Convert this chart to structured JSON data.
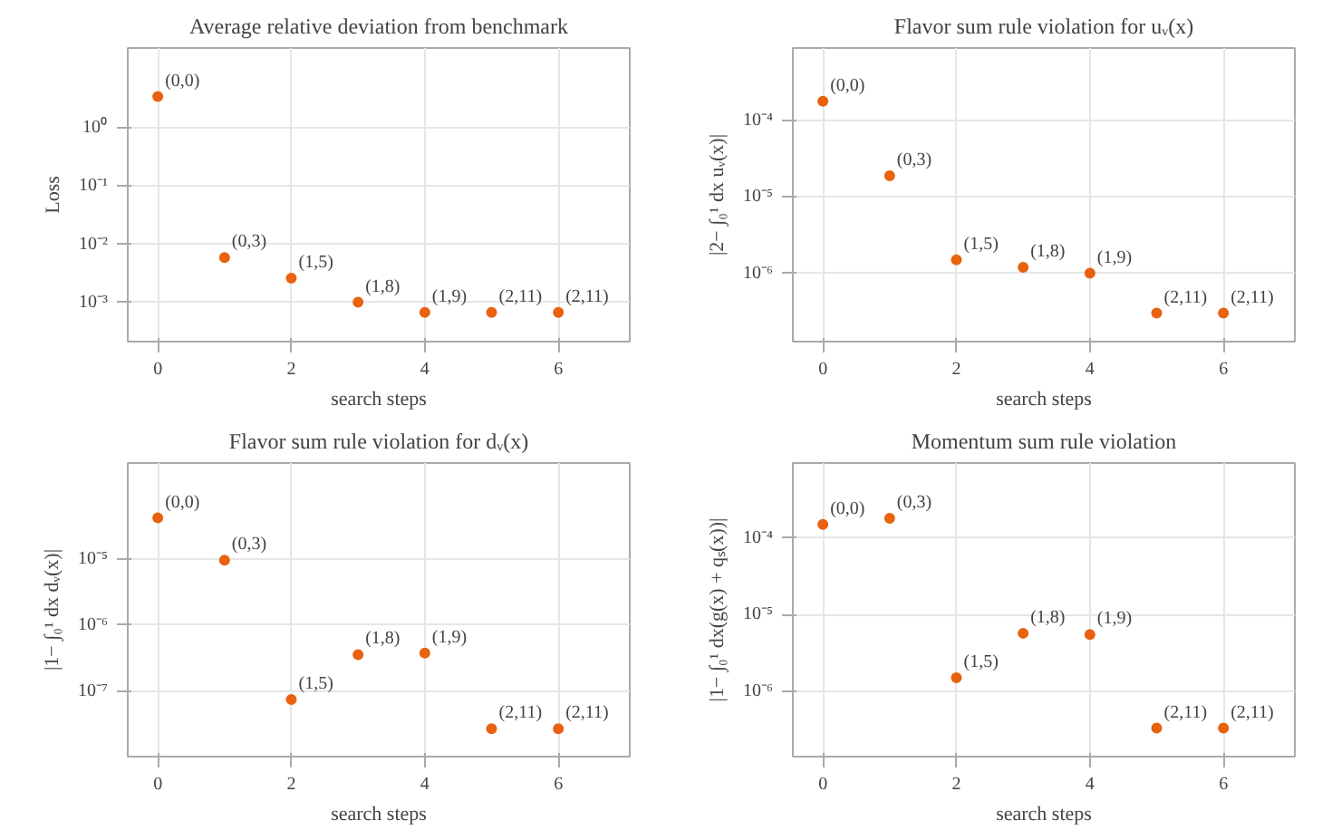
{
  "chart_data": [
    {
      "type": "scatter",
      "title": "Average relative deviation from benchmark",
      "xlabel": "search steps",
      "ylabel": "Loss",
      "log": "y",
      "grid": true,
      "marker": "circle",
      "x": [
        0,
        1,
        2,
        3,
        4,
        5,
        6
      ],
      "series": [
        {
          "color": "#e8620f",
          "values": [
            3.5,
            0.0059,
            0.0026,
            0.001,
            0.00067,
            0.00067,
            0.00067
          ]
        }
      ],
      "xlim": [
        -0.45,
        7.07
      ],
      "xticks": [
        0,
        2,
        4,
        6
      ],
      "ylim": [
        0.00021,
        24
      ],
      "yticks": [
        {
          "value": 0.001,
          "label": "10⁻³"
        },
        {
          "value": 0.01,
          "label": "10⁻²"
        },
        {
          "value": 0.1,
          "label": "10⁻¹"
        },
        {
          "value": 1,
          "label": "10⁰"
        }
      ],
      "annotations": [
        {
          "text": "(0,0)",
          "x": 0,
          "y": 3.5
        },
        {
          "text": "(0,3)",
          "x": 1,
          "y": 0.0059
        },
        {
          "text": "(1,5)",
          "x": 2,
          "y": 0.0026
        },
        {
          "text": "(1,8)",
          "x": 3,
          "y": 0.001
        },
        {
          "text": "(1,9)",
          "x": 4,
          "y": 0.00067
        },
        {
          "text": "(2,11)",
          "x": 5,
          "y": 0.00067
        },
        {
          "text": "(2,11)",
          "x": 6,
          "y": 0.00067
        }
      ]
    },
    {
      "type": "scatter",
      "title": "Flavor sum rule violation for uᵥ(x)",
      "xlabel": "search steps",
      "ylabel": "|2− ∫₀¹ dx uᵥ(x)|",
      "log": "y",
      "grid": true,
      "marker": "circle",
      "x": [
        0,
        1,
        2,
        3,
        4,
        5,
        6
      ],
      "series": [
        {
          "color": "#e8620f",
          "values": [
            0.00018,
            1.9e-05,
            1.5e-06,
            1.2e-06,
            1e-06,
            3e-07,
            3e-07
          ]
        }
      ],
      "xlim": [
        -0.45,
        7.07
      ],
      "xticks": [
        0,
        2,
        4,
        6
      ],
      "ylim": [
        1.27e-07,
        0.0009
      ],
      "yticks": [
        {
          "value": 1e-06,
          "label": "10⁻⁶"
        },
        {
          "value": 1e-05,
          "label": "10⁻⁵"
        },
        {
          "value": 0.0001,
          "label": "10⁻⁴"
        }
      ],
      "annotations": [
        {
          "text": "(0,0)",
          "x": 0,
          "y": 0.00018
        },
        {
          "text": "(0,3)",
          "x": 1,
          "y": 1.9e-05
        },
        {
          "text": "(1,5)",
          "x": 2,
          "y": 1.5e-06
        },
        {
          "text": "(1,8)",
          "x": 3,
          "y": 1.2e-06
        },
        {
          "text": "(1,9)",
          "x": 4,
          "y": 1e-06
        },
        {
          "text": "(2,11)",
          "x": 5,
          "y": 3e-07
        },
        {
          "text": "(2,11)",
          "x": 6,
          "y": 3e-07
        }
      ]
    },
    {
      "type": "scatter",
      "title": "Flavor sum rule violation for dᵥ(x)",
      "xlabel": "search steps",
      "ylabel": "|1− ∫₀¹ dx dᵥ(x)|",
      "log": "y",
      "grid": true,
      "marker": "circle",
      "x": [
        0,
        1,
        2,
        3,
        4,
        5,
        6
      ],
      "series": [
        {
          "color": "#e8620f",
          "values": [
            4.1e-05,
            9.5e-06,
            7.6e-08,
            3.6e-07,
            3.8e-07,
            2.75e-08,
            2.75e-08
          ]
        }
      ],
      "xlim": [
        -0.45,
        7.07
      ],
      "xticks": [
        0,
        2,
        4,
        6
      ],
      "ylim": [
        1.05e-08,
        0.000275
      ],
      "yticks": [
        {
          "value": 1e-07,
          "label": "10⁻⁷"
        },
        {
          "value": 1e-06,
          "label": "10⁻⁶"
        },
        {
          "value": 1e-05,
          "label": "10⁻⁵"
        }
      ],
      "annotations": [
        {
          "text": "(0,0)",
          "x": 0,
          "y": 4.1e-05
        },
        {
          "text": "(0,3)",
          "x": 1,
          "y": 9.5e-06
        },
        {
          "text": "(1,5)",
          "x": 2,
          "y": 7.6e-08
        },
        {
          "text": "(1,8)",
          "x": 3,
          "y": 3.6e-07
        },
        {
          "text": "(1,9)",
          "x": 4,
          "y": 3.8e-07
        },
        {
          "text": "(2,11)",
          "x": 5,
          "y": 2.75e-08
        },
        {
          "text": "(2,11)",
          "x": 6,
          "y": 2.75e-08
        }
      ]
    },
    {
      "type": "scatter",
      "title": "Momentum sum rule violation",
      "xlabel": "search steps",
      "ylabel": "|1− ∫₀¹ dx(g(x) + qₛ(x))|",
      "log": "y",
      "grid": true,
      "marker": "circle",
      "x": [
        0,
        1,
        2,
        3,
        4,
        5,
        6
      ],
      "series": [
        {
          "color": "#e8620f",
          "values": [
            0.00015,
            0.00018,
            1.5e-06,
            5.7e-06,
            5.5e-06,
            3.3e-07,
            3.3e-07
          ]
        }
      ],
      "xlim": [
        -0.45,
        7.07
      ],
      "xticks": [
        0,
        2,
        4,
        6
      ],
      "ylim": [
        1.4e-07,
        0.00095
      ],
      "yticks": [
        {
          "value": 1e-06,
          "label": "10⁻⁶"
        },
        {
          "value": 1e-05,
          "label": "10⁻⁵"
        },
        {
          "value": 0.0001,
          "label": "10⁻⁴"
        }
      ],
      "annotations": [
        {
          "text": "(0,0)",
          "x": 0,
          "y": 0.00015
        },
        {
          "text": "(0,3)",
          "x": 1,
          "y": 0.00018
        },
        {
          "text": "(1,5)",
          "x": 2,
          "y": 1.5e-06
        },
        {
          "text": "(1,8)",
          "x": 3,
          "y": 5.7e-06
        },
        {
          "text": "(1,9)",
          "x": 4,
          "y": 5.5e-06
        },
        {
          "text": "(2,11)",
          "x": 5,
          "y": 3.3e-07
        },
        {
          "text": "(2,11)",
          "x": 6,
          "y": 3.3e-07
        }
      ]
    }
  ]
}
